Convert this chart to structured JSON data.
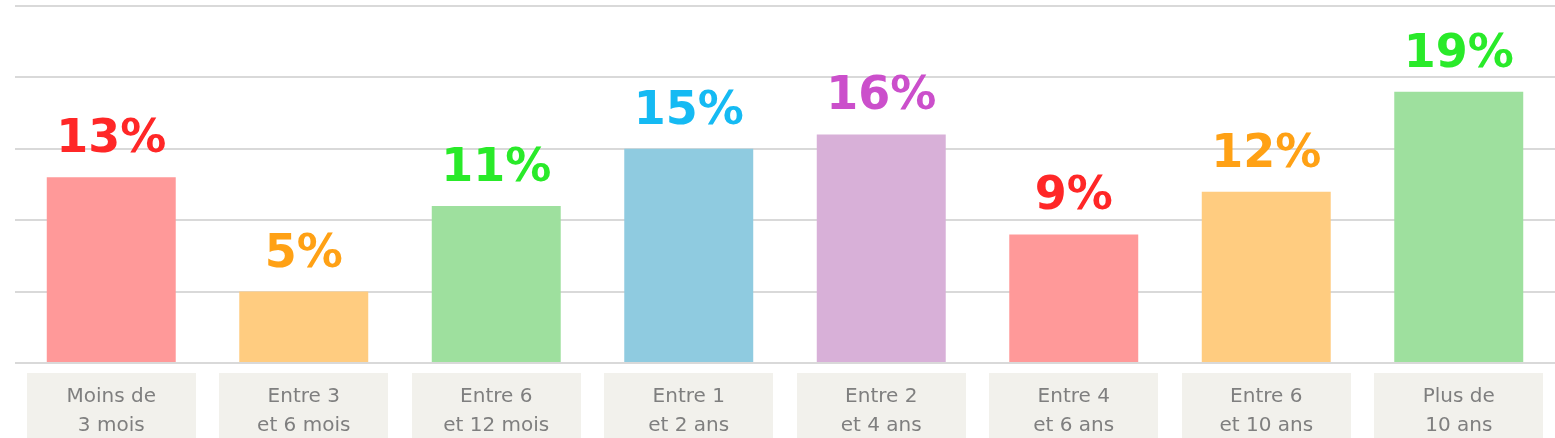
{
  "chart_data": {
    "type": "bar",
    "categories": [
      "Moins de 3 mois",
      "Entre 3 et 6 mois",
      "Entre 6 et 12 mois",
      "Entre 1 et 2 ans",
      "Entre 2 et 4 ans",
      "Entre 4 et 6 ans",
      "Entre 6 et 10 ans",
      "Plus de 10 ans"
    ],
    "values": [
      13,
      5,
      11,
      15,
      16,
      9,
      12,
      19
    ],
    "colors": [
      "#ff9999",
      "#ffcc80",
      "#9ee09e",
      "#8fcbe0",
      "#d8b0d8",
      "#ff9999",
      "#ffcc80",
      "#9ee09e"
    ],
    "value_labels": [
      "13%",
      "5%",
      "11%",
      "15%",
      "16%",
      "9%",
      "12%",
      "19%"
    ],
    "grid": "y",
    "tick_labels": "x",
    "legend": false
  }
}
